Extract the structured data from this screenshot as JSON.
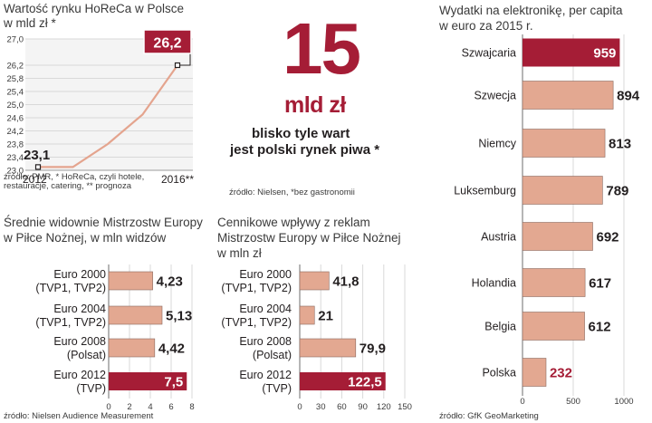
{
  "colors": {
    "highlight": "#a51d36",
    "bar": "#e3a891",
    "bar_stroke": "#8a6a60",
    "line": "#e4a48e",
    "grid": "#d9d9d9",
    "text": "#231f20",
    "number_text": "#231f20"
  },
  "horeca": {
    "title_line1": "Wartość rynku HoReCa w Polsce",
    "title_line2": "w mld zł *",
    "source_line1": "źródło: PMR, * HoReCa, czyli hotele,",
    "source_line2": "restauracje, catering, ** prognoza"
  },
  "hero": {
    "number": "15",
    "unit": "mld zł",
    "caption_line1": "blisko tyle wart",
    "caption_line2": "jest polski rynek piwa *",
    "source": "źródło: Nielsen, *bez gastronomii"
  },
  "viewers": {
    "title_line1": "Średnie widownie Mistrzostw Europy",
    "title_line2": "w Piłce Nożnej, w mln widzów",
    "source": "źródło: Nielsen Audience Measurement"
  },
  "ads": {
    "title_line1": "Cennikowe wpływy z reklam",
    "title_line2": "Mistrzostw Europy w Piłce Nożnej",
    "title_line3": "w mln zł"
  },
  "electronics": {
    "title_line1": "Wydatki na elektronikę, per capita",
    "title_line2": "w euro za 2015 r.",
    "source": "źródło: GfK GeoMarketing"
  },
  "chart_data": [
    {
      "type": "line",
      "title": "Wartość rynku HoReCa w Polsce w mld zł *",
      "x": [
        2012,
        2013,
        2014,
        2015,
        2016
      ],
      "x_tick_labels": [
        "2012",
        "2016**"
      ],
      "series": [
        {
          "values": [
            23.1,
            23.1,
            23.8,
            24.7,
            26.2
          ]
        }
      ],
      "value_labels": [
        "23,1",
        "26,2"
      ],
      "y_ticks": [
        "23,0",
        "23,4",
        "23,8",
        "24,2",
        "24,6",
        "25,0",
        "25,4",
        "25,8",
        "26,2",
        "27,0"
      ],
      "ylim": [
        23.0,
        27.0
      ],
      "grid": true
    },
    {
      "type": "bar",
      "orientation": "horizontal",
      "title": "Średnie widownie Mistrzostw Europy w Piłce Nożnej, w mln widzów",
      "categories": [
        [
          "Euro 2000",
          "(TVP1, TVP2)"
        ],
        [
          "Euro 2004",
          "(TVP1, TVP2)"
        ],
        [
          "Euro 2008",
          "(Polsat)"
        ],
        [
          "Euro 2012",
          "(TVP)"
        ]
      ],
      "values": [
        4.23,
        5.13,
        4.42,
        7.5
      ],
      "value_labels": [
        "4,23",
        "5,13",
        "4,42",
        "7,5"
      ],
      "highlight_index": 3,
      "x_ticks": [
        "0",
        "2",
        "4",
        "6",
        "8"
      ],
      "xlim": [
        0,
        8
      ],
      "grid": true
    },
    {
      "type": "bar",
      "orientation": "horizontal",
      "title": "Cennikowe wpływy z reklam Mistrzostw Europy w Piłce Nożnej w mln zł",
      "categories": [
        [
          "Euro 2000",
          "(TVP1, TVP2)"
        ],
        [
          "Euro 2004",
          "(TVP1, TVP2)"
        ],
        [
          "Euro 2008",
          "(Polsat)"
        ],
        [
          "Euro 2012",
          "(TVP)"
        ]
      ],
      "values": [
        41.8,
        21,
        79.9,
        122.5
      ],
      "value_labels": [
        "41,8",
        "21",
        "79,9",
        "122,5"
      ],
      "highlight_index": 3,
      "x_ticks": [
        "0",
        "30",
        "60",
        "90",
        "120",
        "150"
      ],
      "xlim": [
        0,
        150
      ],
      "grid": true
    },
    {
      "type": "bar",
      "orientation": "horizontal",
      "title": "Wydatki na elektronikę, per capita w euro za 2015 r.",
      "categories": [
        "Szwajcaria",
        "Szwecja",
        "Niemcy",
        "Luksemburg",
        "Austria",
        "Holandia",
        "Belgia",
        "Polska"
      ],
      "values": [
        959,
        894,
        813,
        789,
        692,
        617,
        612,
        232
      ],
      "value_labels": [
        "959",
        "894",
        "813",
        "789",
        "692",
        "617",
        "612",
        "232"
      ],
      "highlight_index": 0,
      "special_label_index": 7,
      "x_ticks": [
        "0",
        "500",
        "1000"
      ],
      "xlim": [
        0,
        1000
      ],
      "grid": true
    }
  ]
}
